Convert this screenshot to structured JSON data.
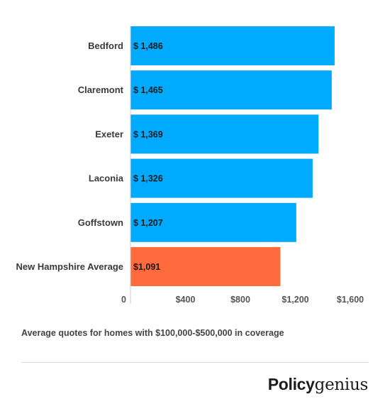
{
  "chart_data": {
    "type": "bar",
    "orientation": "horizontal",
    "categories": [
      "Bedford",
      "Claremont",
      "Exeter",
      "Laconia",
      "Goffstown",
      "New Hampshire Average"
    ],
    "values": [
      1486,
      1465,
      1369,
      1326,
      1207,
      1091
    ],
    "value_labels": [
      "$ 1,486",
      "$ 1,465",
      "$ 1,369",
      "$ 1,326",
      "$ 1,207",
      "$1,091"
    ],
    "xlim": [
      0,
      1600
    ],
    "x_ticks": [
      0,
      400,
      800,
      1200,
      1600
    ],
    "x_tick_labels": [
      "0",
      "$400",
      "$800",
      "$1,200",
      "$1,600"
    ],
    "grid": false,
    "colors": {
      "default": "#00aaff",
      "highlight": "#ff6b3d",
      "highlight_category": "New Hampshire Average"
    }
  },
  "footnote": "Average quotes for homes with $100,000-$500,000 in coverage",
  "brand": {
    "part1": "Policy",
    "part2": "genius"
  }
}
